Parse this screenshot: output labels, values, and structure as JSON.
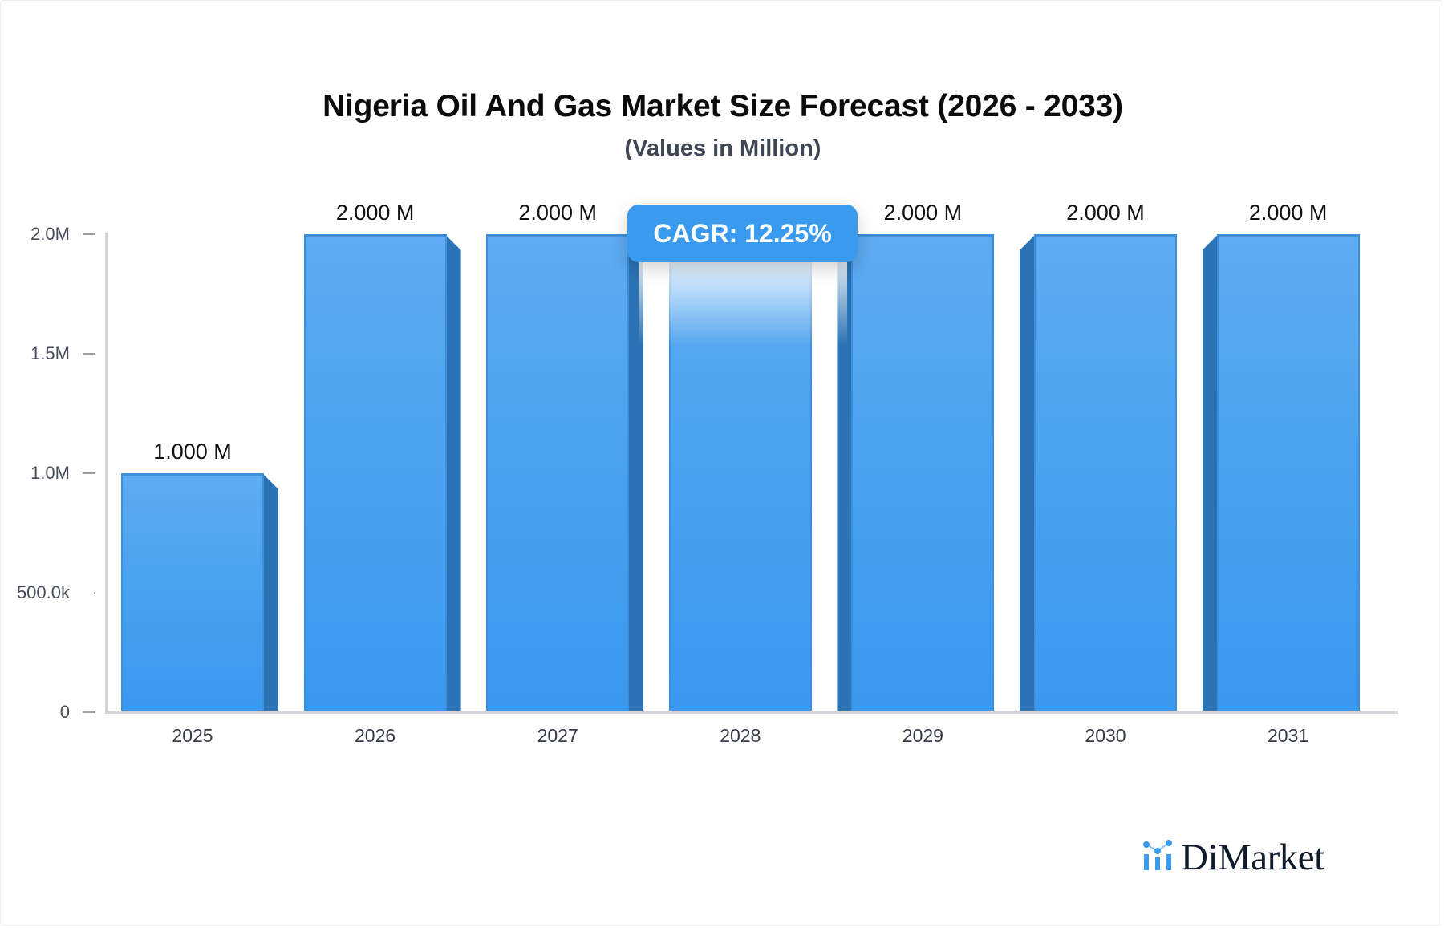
{
  "header": {
    "title": "Nigeria Oil And Gas Market Size Forecast (2026 - 2033)",
    "subtitle": "(Values in Million)"
  },
  "badge": {
    "cagr_label": "CAGR: 12.25%",
    "color": "#3a9aee"
  },
  "y_axis": {
    "ticks": [
      {
        "label": "2.0M",
        "value": 2000000
      },
      {
        "label": "1.5M",
        "value": 1500000
      },
      {
        "label": "1.0M",
        "value": 1000000
      },
      {
        "label": "500.0k",
        "value": 500000
      },
      {
        "label": "0",
        "value": 0
      }
    ]
  },
  "bars": [
    {
      "year": "2025",
      "value_label": "1.000 M",
      "value": 1.0,
      "side": "right"
    },
    {
      "year": "2026",
      "value_label": "2.000 M",
      "value": 2.0,
      "side": "right"
    },
    {
      "year": "2027",
      "value_label": "2.000 M",
      "value": 2.0,
      "side": "right"
    },
    {
      "year": "2028",
      "value_label": "",
      "value": 2.0,
      "side": "none"
    },
    {
      "year": "2029",
      "value_label": "2.000 M",
      "value": 2.0,
      "side": "left"
    },
    {
      "year": "2030",
      "value_label": "2.000 M",
      "value": 2.0,
      "side": "left"
    },
    {
      "year": "2031",
      "value_label": "2.000 M",
      "value": 2.0,
      "side": "left"
    }
  ],
  "colors": {
    "bar_front_top": "#5eabf1",
    "bar_front_bottom": "#3a98ef",
    "bar_side": "#2b73b4",
    "axis": "#d3d5db",
    "logo_accent": "#3a9aee"
  },
  "logo": {
    "text": "DiMarket",
    "icon": "bar-chart-dots-icon"
  },
  "chart_data": {
    "type": "bar",
    "title": "Nigeria Oil And Gas Market Size Forecast (2026 - 2033)",
    "subtitle": "(Values in Million)",
    "categories": [
      "2025",
      "2026",
      "2027",
      "2028",
      "2029",
      "2030",
      "2031"
    ],
    "values": [
      1.0,
      2.0,
      2.0,
      2.0,
      2.0,
      2.0,
      2.0
    ],
    "data_labels": [
      "1.000 M",
      "2.000 M",
      "2.000 M",
      null,
      "2.000 M",
      "2.000 M",
      "2.000 M"
    ],
    "unit": "Million",
    "xlabel": "",
    "ylabel": "",
    "ylim": [
      0,
      2000000
    ],
    "y_tick_labels": [
      "0",
      "500.0k",
      "1.0M",
      "1.5M",
      "2.0M"
    ],
    "grid": false,
    "legend": null,
    "annotations": [
      "CAGR: 12.25%"
    ]
  }
}
